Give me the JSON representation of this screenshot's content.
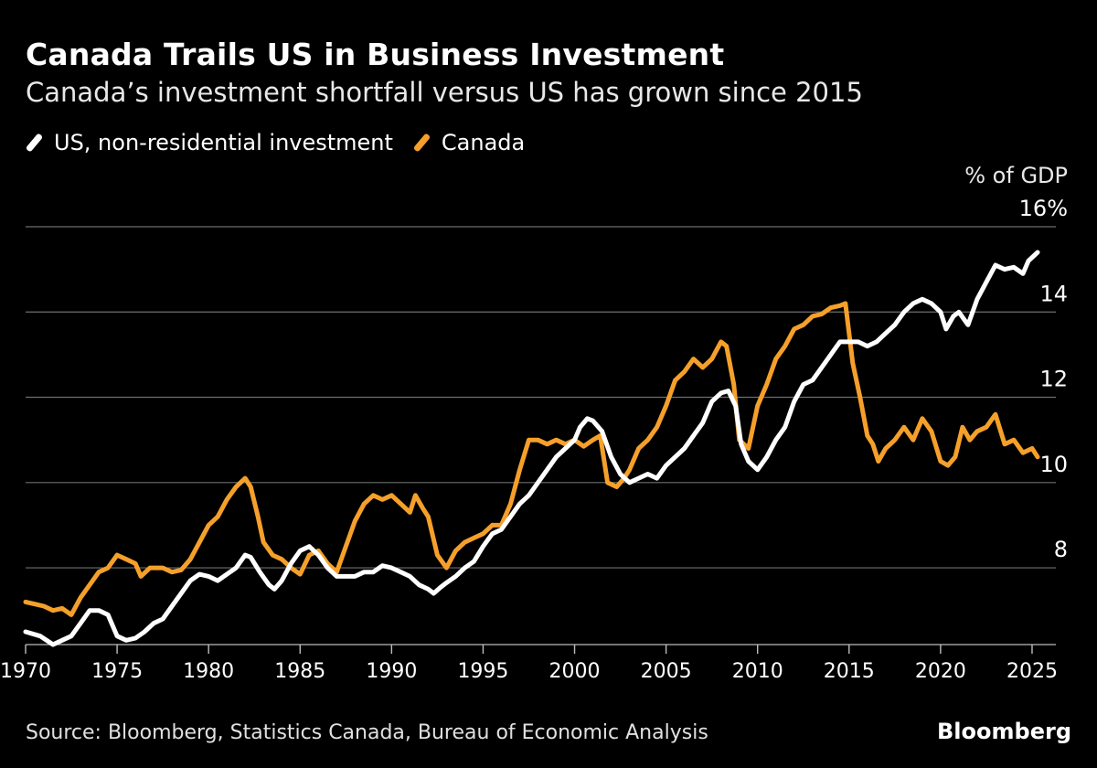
{
  "header": {
    "title": "Canada Trails US in Business Investment",
    "subtitle": "Canada’s investment shortfall versus US has grown since 2015"
  },
  "legend": {
    "items": [
      {
        "label": "US, non-residential investment",
        "color": "#ffffff"
      },
      {
        "label": "Canada",
        "color": "#f5a02a"
      }
    ]
  },
  "footer": {
    "source": "Source: Bloomberg, Statistics Canada, Bureau of Economic Analysis",
    "brand": "Bloomberg"
  },
  "chart_data": {
    "type": "line",
    "title": "Canada Trails US in Business Investment",
    "subtitle": "Canada’s investment shortfall versus US has grown since 2015",
    "ylabel": "% of GDP",
    "xlabel": "",
    "xlim": [
      1970,
      2026.3
    ],
    "ylim": [
      6.2,
      16
    ],
    "x_ticks": [
      1970,
      1975,
      1980,
      1985,
      1990,
      1995,
      2000,
      2005,
      2010,
      2015,
      2020,
      2025
    ],
    "x_tick_labels": [
      "1970",
      "1975",
      "1980",
      "1985",
      "1990",
      "1995",
      "2000",
      "2005",
      "2010",
      "2015",
      "2020",
      "2025"
    ],
    "y_ticks": [
      8,
      10,
      12,
      14,
      16
    ],
    "y_tick_labels": [
      "8",
      "10",
      "12",
      "14",
      "16%"
    ],
    "grid": "horizontal",
    "legend_position": "top-left",
    "series": [
      {
        "name": "US, non-residential investment",
        "color": "#ffffff",
        "points": [
          [
            1970,
            6.5
          ],
          [
            1970.8,
            6.4
          ],
          [
            1971.5,
            6.2
          ],
          [
            1972,
            6.3
          ],
          [
            1972.5,
            6.4
          ],
          [
            1973,
            6.7
          ],
          [
            1973.5,
            7.0
          ],
          [
            1974,
            7.0
          ],
          [
            1974.5,
            6.9
          ],
          [
            1975,
            6.4
          ],
          [
            1975.5,
            6.3
          ],
          [
            1976,
            6.35
          ],
          [
            1976.5,
            6.5
          ],
          [
            1977,
            6.7
          ],
          [
            1977.5,
            6.8
          ],
          [
            1978,
            7.1
          ],
          [
            1978.5,
            7.4
          ],
          [
            1979,
            7.7
          ],
          [
            1979.5,
            7.85
          ],
          [
            1980,
            7.8
          ],
          [
            1980.5,
            7.7
          ],
          [
            1981,
            7.85
          ],
          [
            1981.5,
            8.0
          ],
          [
            1982,
            8.3
          ],
          [
            1982.3,
            8.25
          ],
          [
            1982.8,
            7.9
          ],
          [
            1983.3,
            7.6
          ],
          [
            1983.6,
            7.5
          ],
          [
            1984,
            7.7
          ],
          [
            1984.5,
            8.1
          ],
          [
            1985,
            8.4
          ],
          [
            1985.5,
            8.5
          ],
          [
            1986,
            8.3
          ],
          [
            1986.5,
            8.0
          ],
          [
            1987,
            7.8
          ],
          [
            1987.5,
            7.8
          ],
          [
            1988,
            7.8
          ],
          [
            1988.5,
            7.9
          ],
          [
            1989,
            7.9
          ],
          [
            1989.5,
            8.05
          ],
          [
            1990,
            8.0
          ],
          [
            1990.5,
            7.9
          ],
          [
            1991,
            7.8
          ],
          [
            1991.5,
            7.6
          ],
          [
            1992,
            7.5
          ],
          [
            1992.3,
            7.4
          ],
          [
            1992.7,
            7.55
          ],
          [
            1993,
            7.65
          ],
          [
            1993.5,
            7.8
          ],
          [
            1994,
            8.0
          ],
          [
            1994.5,
            8.15
          ],
          [
            1995,
            8.5
          ],
          [
            1995.5,
            8.8
          ],
          [
            1996,
            8.9
          ],
          [
            1996.5,
            9.2
          ],
          [
            1997,
            9.5
          ],
          [
            1997.5,
            9.7
          ],
          [
            1998,
            10.0
          ],
          [
            1998.5,
            10.3
          ],
          [
            1999,
            10.6
          ],
          [
            1999.5,
            10.8
          ],
          [
            2000,
            11.0
          ],
          [
            2000.3,
            11.3
          ],
          [
            2000.7,
            11.5
          ],
          [
            2001,
            11.45
          ],
          [
            2001.5,
            11.2
          ],
          [
            2002,
            10.6
          ],
          [
            2002.5,
            10.2
          ],
          [
            2003,
            10.0
          ],
          [
            2003.5,
            10.1
          ],
          [
            2004,
            10.2
          ],
          [
            2004.5,
            10.1
          ],
          [
            2005,
            10.4
          ],
          [
            2005.5,
            10.6
          ],
          [
            2006,
            10.8
          ],
          [
            2006.5,
            11.1
          ],
          [
            2007,
            11.4
          ],
          [
            2007.5,
            11.9
          ],
          [
            2008,
            12.1
          ],
          [
            2008.4,
            12.15
          ],
          [
            2008.8,
            11.8
          ],
          [
            2009.1,
            10.9
          ],
          [
            2009.5,
            10.5
          ],
          [
            2010,
            10.3
          ],
          [
            2010.5,
            10.6
          ],
          [
            2011,
            11.0
          ],
          [
            2011.5,
            11.3
          ],
          [
            2012,
            11.9
          ],
          [
            2012.5,
            12.3
          ],
          [
            2013,
            12.4
          ],
          [
            2013.5,
            12.7
          ],
          [
            2014,
            13.0
          ],
          [
            2014.5,
            13.3
          ],
          [
            2015,
            13.3
          ],
          [
            2015.5,
            13.3
          ],
          [
            2016,
            13.2
          ],
          [
            2016.5,
            13.3
          ],
          [
            2017,
            13.5
          ],
          [
            2017.5,
            13.7
          ],
          [
            2018,
            14.0
          ],
          [
            2018.5,
            14.2
          ],
          [
            2019,
            14.3
          ],
          [
            2019.5,
            14.2
          ],
          [
            2020,
            14.0
          ],
          [
            2020.3,
            13.6
          ],
          [
            2020.7,
            13.9
          ],
          [
            2021,
            14.0
          ],
          [
            2021.5,
            13.7
          ],
          [
            2022,
            14.3
          ],
          [
            2022.5,
            14.7
          ],
          [
            2023,
            15.1
          ],
          [
            2023.5,
            15.0
          ],
          [
            2024,
            15.05
          ],
          [
            2024.5,
            14.9
          ],
          [
            2024.8,
            15.2
          ],
          [
            2025.3,
            15.4
          ]
        ]
      },
      {
        "name": "Canada",
        "color": "#f5a02a",
        "points": [
          [
            1970,
            7.2
          ],
          [
            1970.5,
            7.15
          ],
          [
            1971,
            7.1
          ],
          [
            1971.5,
            7.0
          ],
          [
            1972,
            7.05
          ],
          [
            1972.5,
            6.9
          ],
          [
            1973,
            7.3
          ],
          [
            1973.5,
            7.6
          ],
          [
            1974,
            7.9
          ],
          [
            1974.5,
            8.0
          ],
          [
            1975,
            8.3
          ],
          [
            1975.5,
            8.2
          ],
          [
            1976,
            8.1
          ],
          [
            1976.3,
            7.8
          ],
          [
            1976.8,
            8.0
          ],
          [
            1977.5,
            8.0
          ],
          [
            1978,
            7.9
          ],
          [
            1978.5,
            7.95
          ],
          [
            1979,
            8.2
          ],
          [
            1979.5,
            8.6
          ],
          [
            1980,
            9.0
          ],
          [
            1980.5,
            9.2
          ],
          [
            1981,
            9.6
          ],
          [
            1981.5,
            9.9
          ],
          [
            1982,
            10.1
          ],
          [
            1982.3,
            9.9
          ],
          [
            1982.7,
            9.2
          ],
          [
            1983,
            8.6
          ],
          [
            1983.5,
            8.3
          ],
          [
            1984,
            8.2
          ],
          [
            1984.5,
            8.0
          ],
          [
            1985,
            7.85
          ],
          [
            1985.5,
            8.3
          ],
          [
            1986,
            8.4
          ],
          [
            1986.5,
            8.1
          ],
          [
            1987,
            7.9
          ],
          [
            1987.5,
            8.5
          ],
          [
            1988,
            9.1
          ],
          [
            1988.5,
            9.5
          ],
          [
            1989,
            9.7
          ],
          [
            1989.5,
            9.6
          ],
          [
            1990,
            9.7
          ],
          [
            1990.5,
            9.5
          ],
          [
            1991,
            9.3
          ],
          [
            1991.3,
            9.7
          ],
          [
            1991.7,
            9.4
          ],
          [
            1992,
            9.2
          ],
          [
            1992.5,
            8.3
          ],
          [
            1993,
            8.0
          ],
          [
            1993.5,
            8.4
          ],
          [
            1994,
            8.6
          ],
          [
            1994.5,
            8.7
          ],
          [
            1995,
            8.8
          ],
          [
            1995.5,
            9.0
          ],
          [
            1996,
            9.0
          ],
          [
            1996.5,
            9.5
          ],
          [
            1997,
            10.3
          ],
          [
            1997.5,
            11.0
          ],
          [
            1998,
            11.0
          ],
          [
            1998.5,
            10.9
          ],
          [
            1999,
            11.0
          ],
          [
            1999.5,
            10.9
          ],
          [
            2000,
            11.0
          ],
          [
            2000.5,
            10.85
          ],
          [
            2001,
            11.0
          ],
          [
            2001.4,
            11.1
          ],
          [
            2001.8,
            10.0
          ],
          [
            2002.3,
            9.9
          ],
          [
            2002.7,
            10.1
          ],
          [
            2003,
            10.3
          ],
          [
            2003.5,
            10.8
          ],
          [
            2004,
            11.0
          ],
          [
            2004.5,
            11.3
          ],
          [
            2005,
            11.8
          ],
          [
            2005.5,
            12.4
          ],
          [
            2006,
            12.6
          ],
          [
            2006.5,
            12.9
          ],
          [
            2007,
            12.7
          ],
          [
            2007.5,
            12.9
          ],
          [
            2008,
            13.3
          ],
          [
            2008.3,
            13.2
          ],
          [
            2008.7,
            12.3
          ],
          [
            2009,
            11.0
          ],
          [
            2009.5,
            10.8
          ],
          [
            2010,
            11.8
          ],
          [
            2010.5,
            12.3
          ],
          [
            2011,
            12.9
          ],
          [
            2011.5,
            13.2
          ],
          [
            2012,
            13.6
          ],
          [
            2012.5,
            13.7
          ],
          [
            2013,
            13.9
          ],
          [
            2013.5,
            13.95
          ],
          [
            2014,
            14.1
          ],
          [
            2014.5,
            14.15
          ],
          [
            2014.8,
            14.2
          ],
          [
            2015.2,
            12.8
          ],
          [
            2015.6,
            12.0
          ],
          [
            2016,
            11.1
          ],
          [
            2016.3,
            10.9
          ],
          [
            2016.6,
            10.5
          ],
          [
            2017,
            10.8
          ],
          [
            2017.5,
            11.0
          ],
          [
            2018,
            11.3
          ],
          [
            2018.5,
            11.0
          ],
          [
            2019,
            11.5
          ],
          [
            2019.5,
            11.2
          ],
          [
            2020,
            10.5
          ],
          [
            2020.4,
            10.4
          ],
          [
            2020.8,
            10.6
          ],
          [
            2021.2,
            11.3
          ],
          [
            2021.6,
            11.0
          ],
          [
            2022,
            11.2
          ],
          [
            2022.5,
            11.3
          ],
          [
            2023,
            11.6
          ],
          [
            2023.5,
            10.9
          ],
          [
            2024,
            11.0
          ],
          [
            2024.5,
            10.7
          ],
          [
            2025,
            10.8
          ],
          [
            2025.3,
            10.6
          ]
        ]
      }
    ]
  }
}
